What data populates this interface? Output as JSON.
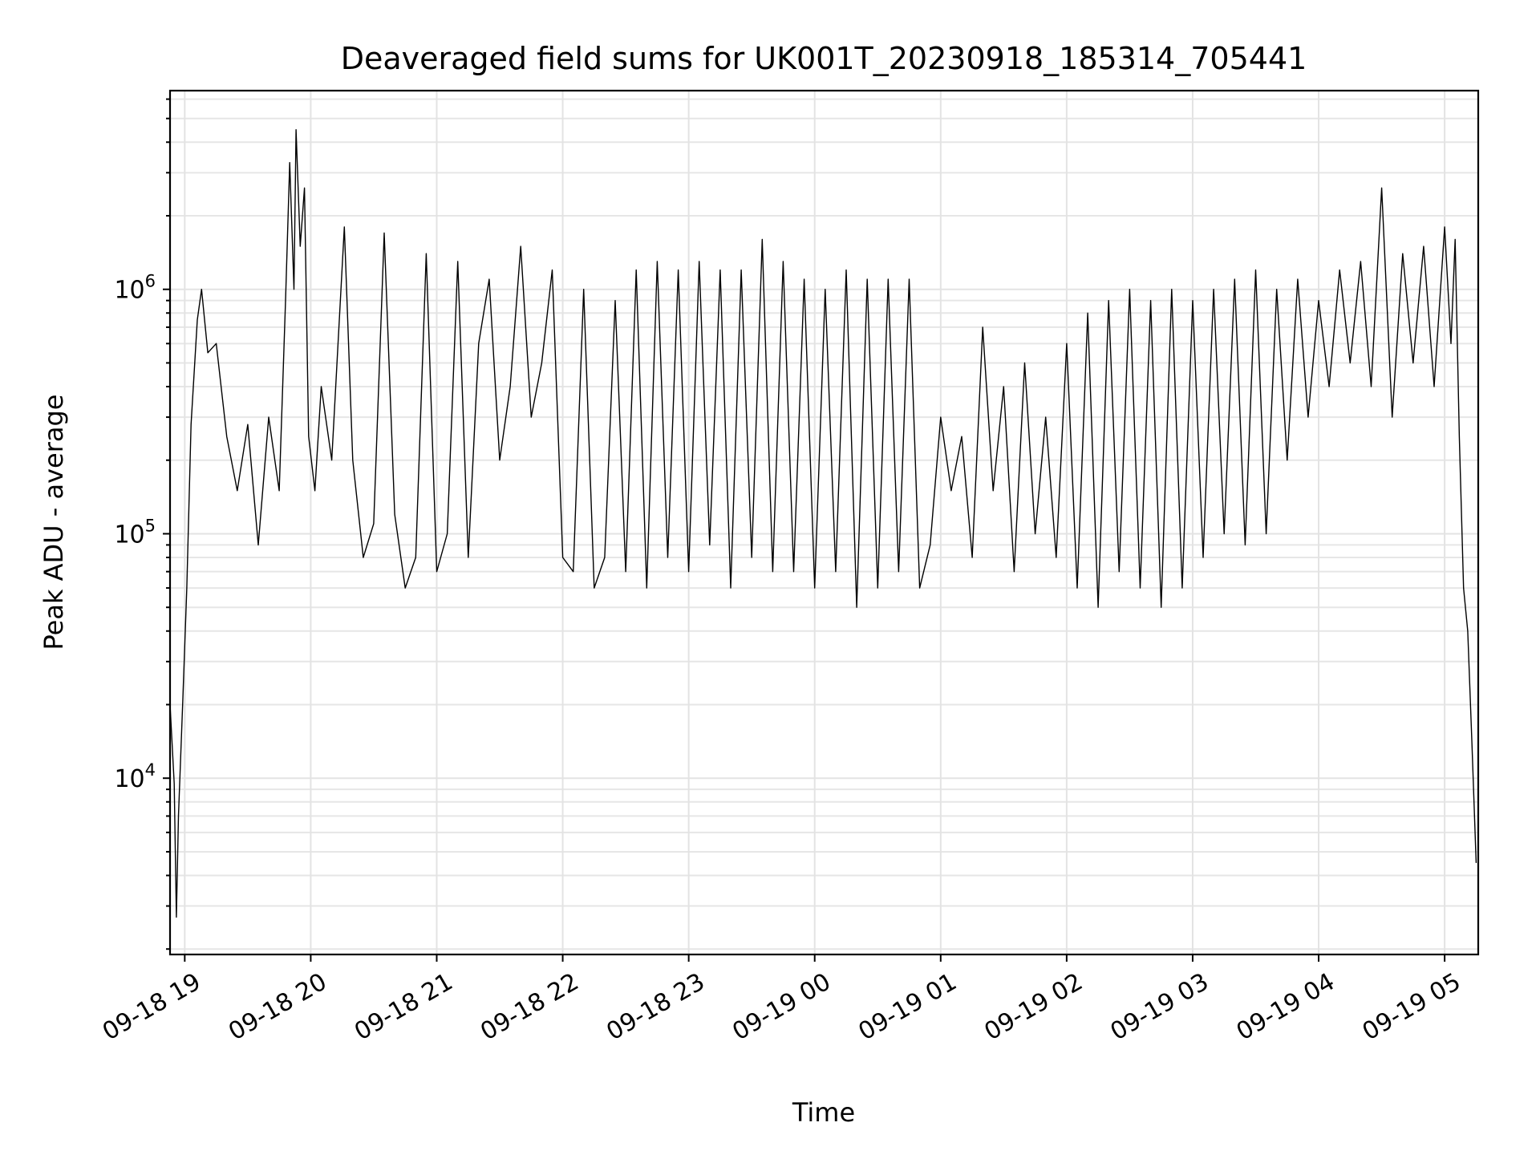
{
  "chart_data": {
    "type": "line",
    "title": "Deaveraged field sums for UK001T_20230918_185314_705441",
    "xlabel": "Time",
    "ylabel": "Peak ADU - average",
    "xlim": [
      "2023-09-18 18:53",
      "2023-09-19 05:16"
    ],
    "ylim": [
      1900,
      6500000
    ],
    "y_scale": "log",
    "grid": true,
    "x_ticks": [
      "09-18 19",
      "09-18 20",
      "09-18 21",
      "09-18 22",
      "09-18 23",
      "09-19 00",
      "09-19 01",
      "09-19 02",
      "09-19 03",
      "09-19 04",
      "09-19 05"
    ],
    "x_tick_times": [
      "2023-09-18 19:00",
      "2023-09-18 20:00",
      "2023-09-18 21:00",
      "2023-09-18 22:00",
      "2023-09-18 23:00",
      "2023-09-19 00:00",
      "2023-09-19 01:00",
      "2023-09-19 02:00",
      "2023-09-19 03:00",
      "2023-09-19 04:00",
      "2023-09-19 05:00"
    ],
    "y_ticks": [
      {
        "value": 10000,
        "base": "10",
        "exp": "4"
      },
      {
        "value": 100000,
        "base": "10",
        "exp": "5"
      },
      {
        "value": 1000000,
        "base": "10",
        "exp": "6"
      }
    ],
    "series": [
      {
        "points": [
          [
            "2023-09-18 18:53",
            20000
          ],
          [
            "2023-09-18 18:55",
            9500
          ],
          [
            "2023-09-18 18:56",
            2700
          ],
          [
            "2023-09-18 18:57",
            7000
          ],
          [
            "2023-09-18 18:59",
            20000
          ],
          [
            "2023-09-18 19:01",
            60000
          ],
          [
            "2023-09-18 19:03",
            280000
          ],
          [
            "2023-09-18 19:06",
            750000
          ],
          [
            "2023-09-18 19:08",
            1000000
          ],
          [
            "2023-09-18 19:11",
            550000
          ],
          [
            "2023-09-18 19:15",
            600000
          ],
          [
            "2023-09-18 19:20",
            250000
          ],
          [
            "2023-09-18 19:25",
            150000
          ],
          [
            "2023-09-18 19:30",
            280000
          ],
          [
            "2023-09-18 19:35",
            90000
          ],
          [
            "2023-09-18 19:40",
            300000
          ],
          [
            "2023-09-18 19:45",
            150000
          ],
          [
            "2023-09-18 19:48",
            900000
          ],
          [
            "2023-09-18 19:50",
            3300000
          ],
          [
            "2023-09-18 19:52",
            1000000
          ],
          [
            "2023-09-18 19:53",
            4500000
          ],
          [
            "2023-09-18 19:55",
            1500000
          ],
          [
            "2023-09-18 19:57",
            2600000
          ],
          [
            "2023-09-18 19:59",
            250000
          ],
          [
            "2023-09-18 20:02",
            150000
          ],
          [
            "2023-09-18 20:05",
            400000
          ],
          [
            "2023-09-18 20:10",
            200000
          ],
          [
            "2023-09-18 20:16",
            1800000
          ],
          [
            "2023-09-18 20:20",
            200000
          ],
          [
            "2023-09-18 20:25",
            80000
          ],
          [
            "2023-09-18 20:30",
            110000
          ],
          [
            "2023-09-18 20:35",
            1700000
          ],
          [
            "2023-09-18 20:40",
            120000
          ],
          [
            "2023-09-18 20:45",
            60000
          ],
          [
            "2023-09-18 20:50",
            80000
          ],
          [
            "2023-09-18 20:55",
            1400000
          ],
          [
            "2023-09-18 21:00",
            70000
          ],
          [
            "2023-09-18 21:05",
            100000
          ],
          [
            "2023-09-18 21:10",
            1300000
          ],
          [
            "2023-09-18 21:15",
            80000
          ],
          [
            "2023-09-18 21:20",
            600000
          ],
          [
            "2023-09-18 21:25",
            1100000
          ],
          [
            "2023-09-18 21:30",
            200000
          ],
          [
            "2023-09-18 21:35",
            400000
          ],
          [
            "2023-09-18 21:40",
            1500000
          ],
          [
            "2023-09-18 21:45",
            300000
          ],
          [
            "2023-09-18 21:50",
            500000
          ],
          [
            "2023-09-18 21:55",
            1200000
          ],
          [
            "2023-09-18 22:00",
            80000
          ],
          [
            "2023-09-18 22:05",
            70000
          ],
          [
            "2023-09-18 22:10",
            1000000
          ],
          [
            "2023-09-18 22:15",
            60000
          ],
          [
            "2023-09-18 22:20",
            80000
          ],
          [
            "2023-09-18 22:25",
            900000
          ],
          [
            "2023-09-18 22:30",
            70000
          ],
          [
            "2023-09-18 22:35",
            1200000
          ],
          [
            "2023-09-18 22:40",
            60000
          ],
          [
            "2023-09-18 22:45",
            1300000
          ],
          [
            "2023-09-18 22:50",
            80000
          ],
          [
            "2023-09-18 22:55",
            1200000
          ],
          [
            "2023-09-18 23:00",
            70000
          ],
          [
            "2023-09-18 23:05",
            1300000
          ],
          [
            "2023-09-18 23:10",
            90000
          ],
          [
            "2023-09-18 23:15",
            1200000
          ],
          [
            "2023-09-18 23:20",
            60000
          ],
          [
            "2023-09-18 23:25",
            1200000
          ],
          [
            "2023-09-18 23:30",
            80000
          ],
          [
            "2023-09-18 23:35",
            1600000
          ],
          [
            "2023-09-18 23:40",
            70000
          ],
          [
            "2023-09-18 23:45",
            1300000
          ],
          [
            "2023-09-18 23:50",
            70000
          ],
          [
            "2023-09-18 23:55",
            1100000
          ],
          [
            "2023-09-19 00:00",
            60000
          ],
          [
            "2023-09-19 00:05",
            1000000
          ],
          [
            "2023-09-19 00:10",
            70000
          ],
          [
            "2023-09-19 00:15",
            1200000
          ],
          [
            "2023-09-19 00:20",
            50000
          ],
          [
            "2023-09-19 00:25",
            1100000
          ],
          [
            "2023-09-19 00:30",
            60000
          ],
          [
            "2023-09-19 00:35",
            1100000
          ],
          [
            "2023-09-19 00:40",
            70000
          ],
          [
            "2023-09-19 00:45",
            1100000
          ],
          [
            "2023-09-19 00:50",
            60000
          ],
          [
            "2023-09-19 00:55",
            90000
          ],
          [
            "2023-09-19 01:00",
            300000
          ],
          [
            "2023-09-19 01:05",
            150000
          ],
          [
            "2023-09-19 01:10",
            250000
          ],
          [
            "2023-09-19 01:15",
            80000
          ],
          [
            "2023-09-19 01:20",
            700000
          ],
          [
            "2023-09-19 01:25",
            150000
          ],
          [
            "2023-09-19 01:30",
            400000
          ],
          [
            "2023-09-19 01:35",
            70000
          ],
          [
            "2023-09-19 01:40",
            500000
          ],
          [
            "2023-09-19 01:45",
            100000
          ],
          [
            "2023-09-19 01:50",
            300000
          ],
          [
            "2023-09-19 01:55",
            80000
          ],
          [
            "2023-09-19 02:00",
            600000
          ],
          [
            "2023-09-19 02:05",
            60000
          ],
          [
            "2023-09-19 02:10",
            800000
          ],
          [
            "2023-09-19 02:15",
            50000
          ],
          [
            "2023-09-19 02:20",
            900000
          ],
          [
            "2023-09-19 02:25",
            70000
          ],
          [
            "2023-09-19 02:30",
            1000000
          ],
          [
            "2023-09-19 02:35",
            60000
          ],
          [
            "2023-09-19 02:40",
            900000
          ],
          [
            "2023-09-19 02:45",
            50000
          ],
          [
            "2023-09-19 02:50",
            1000000
          ],
          [
            "2023-09-19 02:55",
            60000
          ],
          [
            "2023-09-19 03:00",
            900000
          ],
          [
            "2023-09-19 03:05",
            80000
          ],
          [
            "2023-09-19 03:10",
            1000000
          ],
          [
            "2023-09-19 03:15",
            100000
          ],
          [
            "2023-09-19 03:20",
            1100000
          ],
          [
            "2023-09-19 03:25",
            90000
          ],
          [
            "2023-09-19 03:30",
            1200000
          ],
          [
            "2023-09-19 03:35",
            100000
          ],
          [
            "2023-09-19 03:40",
            1000000
          ],
          [
            "2023-09-19 03:45",
            200000
          ],
          [
            "2023-09-19 03:50",
            1100000
          ],
          [
            "2023-09-19 03:55",
            300000
          ],
          [
            "2023-09-19 04:00",
            900000
          ],
          [
            "2023-09-19 04:05",
            400000
          ],
          [
            "2023-09-19 04:10",
            1200000
          ],
          [
            "2023-09-19 04:15",
            500000
          ],
          [
            "2023-09-19 04:20",
            1300000
          ],
          [
            "2023-09-19 04:25",
            400000
          ],
          [
            "2023-09-19 04:30",
            2600000
          ],
          [
            "2023-09-19 04:35",
            300000
          ],
          [
            "2023-09-19 04:40",
            1400000
          ],
          [
            "2023-09-19 04:45",
            500000
          ],
          [
            "2023-09-19 04:50",
            1500000
          ],
          [
            "2023-09-19 04:55",
            400000
          ],
          [
            "2023-09-19 05:00",
            1800000
          ],
          [
            "2023-09-19 05:03",
            600000
          ],
          [
            "2023-09-19 05:05",
            1600000
          ],
          [
            "2023-09-19 05:07",
            250000
          ],
          [
            "2023-09-19 05:09",
            60000
          ],
          [
            "2023-09-19 05:11",
            40000
          ],
          [
            "2023-09-19 05:13",
            14000
          ],
          [
            "2023-09-19 05:15",
            4500
          ]
        ]
      }
    ]
  }
}
